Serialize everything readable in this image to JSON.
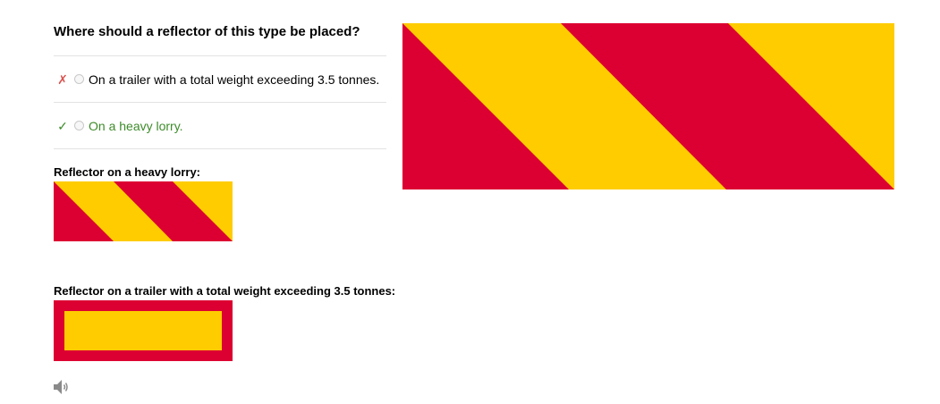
{
  "question": {
    "title": "Where should a reflector of this type be placed?"
  },
  "answers": [
    {
      "mark": "✗",
      "text": "On a trailer with a total weight exceeding 3.5 tonnes.",
      "status": "wrong"
    },
    {
      "mark": "✓",
      "text": "On a heavy lorry.",
      "status": "correct"
    }
  ],
  "explanation": {
    "lorry_label": "Reflector on a heavy lorry:",
    "trailer_label": "Reflector on a trailer with a total weight exceeding 3.5 tonnes:"
  },
  "colors": {
    "reflector_red": "#dc0032",
    "reflector_yellow": "#ffcc00",
    "correct": "#3d8b2a",
    "wrong": "#d9534f"
  },
  "icons": {
    "audio": "speaker-icon"
  }
}
